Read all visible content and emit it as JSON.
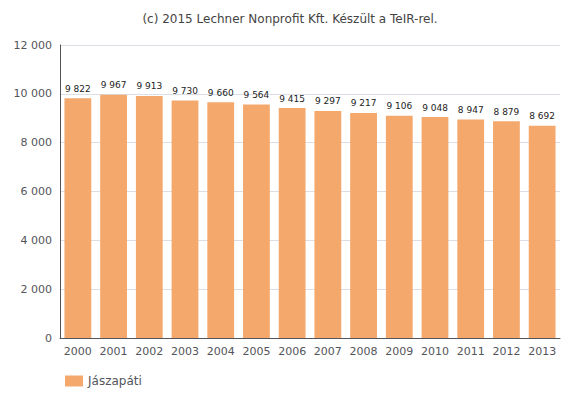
{
  "chart_data": {
    "type": "bar",
    "title": "(c) 2015 Lechner Nonprofit Kft. Készült a TeIR-rel.",
    "categories": [
      "2000",
      "2001",
      "2002",
      "2003",
      "2004",
      "2005",
      "2006",
      "2007",
      "2008",
      "2009",
      "2010",
      "2011",
      "2012",
      "2013"
    ],
    "series": [
      {
        "name": "Jászapáti",
        "color": "#F4A86C",
        "values": [
          9822,
          9967,
          9913,
          9730,
          9660,
          9564,
          9415,
          9297,
          9217,
          9106,
          9048,
          8947,
          8879,
          8692
        ],
        "value_labels": [
          "9 822",
          "9 967",
          "9 913",
          "9 730",
          "9 660",
          "9 564",
          "9 415",
          "9 297",
          "9 217",
          "9 106",
          "9 048",
          "8 947",
          "8 879",
          "8 692"
        ]
      }
    ],
    "ylim": [
      0,
      12000
    ],
    "yticks": [
      0,
      {
        "value": 2000,
        "label": "2 000"
      },
      {
        "value": 4000,
        "label": "4 000"
      },
      {
        "value": 6000,
        "label": "6 000"
      },
      {
        "value": 8000,
        "label": "8 000"
      },
      {
        "value": 10000,
        "label": "10 000"
      },
      {
        "value": 12000,
        "label": "12 000"
      }
    ],
    "grid": true,
    "data_labels": true,
    "legend": "bottom-left"
  }
}
